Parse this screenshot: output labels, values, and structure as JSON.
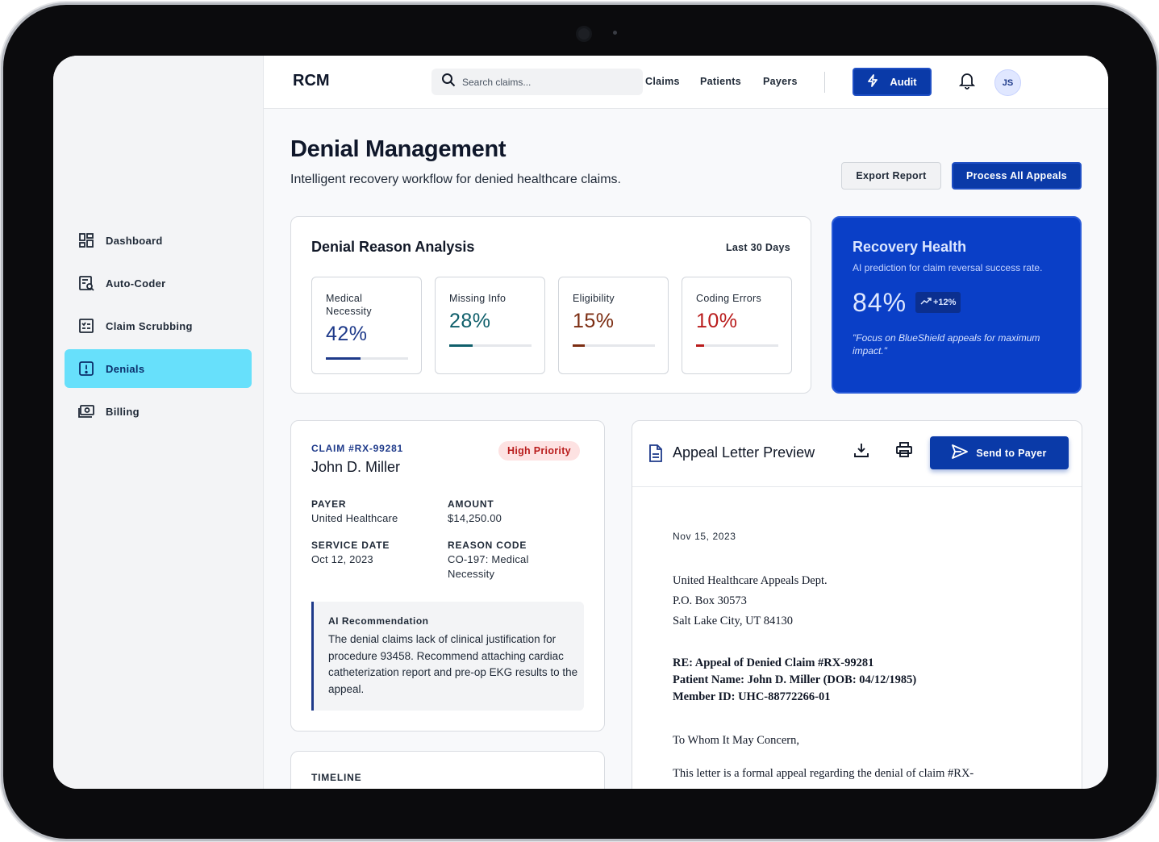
{
  "app": {
    "brand": "RCM"
  },
  "search": {
    "placeholder": "Search claims..."
  },
  "topnav": {
    "links": [
      "Claims",
      "Patients",
      "Payers"
    ],
    "audit_label": "Audit",
    "avatar_initials": "JS"
  },
  "sidebar": {
    "items": [
      {
        "label": "Dashboard",
        "icon": "dashboard-icon"
      },
      {
        "label": "Auto-Coder",
        "icon": "auto-coder-icon"
      },
      {
        "label": "Claim Scrubbing",
        "icon": "checklist-icon"
      },
      {
        "label": "Denials",
        "icon": "alert-square-icon",
        "active": true
      },
      {
        "label": "Billing",
        "icon": "billing-icon"
      }
    ]
  },
  "page": {
    "title": "Denial Management",
    "subtitle": "Intelligent recovery workflow for denied healthcare claims.",
    "export_label": "Export Report",
    "process_label": "Process All Appeals"
  },
  "analysis": {
    "title": "Denial Reason Analysis",
    "range": "Last 30 Days",
    "metrics": [
      {
        "label": "Medical Necessity",
        "value": "42%",
        "fraction": 0.42,
        "color": "#1e3a8a"
      },
      {
        "label": "Missing Info",
        "value": "28%",
        "fraction": 0.28,
        "color": "#0f5f6b"
      },
      {
        "label": "Eligibility",
        "value": "15%",
        "fraction": 0.15,
        "color": "#7c2d12"
      },
      {
        "label": "Coding Errors",
        "value": "10%",
        "fraction": 0.1,
        "color": "#b91c1c"
      }
    ]
  },
  "health": {
    "title": "Recovery Health",
    "description": "AI prediction for claim reversal success rate.",
    "value": "84%",
    "trend": "+12%",
    "quote": "\"Focus on BlueShield appeals for maximum impact.\""
  },
  "claim": {
    "id": "CLAIM #RX-99281",
    "name": "John D. Miller",
    "priority": "High Priority",
    "payer_label": "PAYER",
    "payer": "United Healthcare",
    "amount_label": "AMOUNT",
    "amount": "$14,250.00",
    "service_date_label": "SERVICE DATE",
    "service_date": "Oct 12, 2023",
    "reason_code_label": "REASON CODE",
    "reason_code": "CO-197: Medical Necessity",
    "ai_label": "AI Recommendation",
    "ai_text": "The denial claims lack of clinical justification for procedure 93458. Recommend attaching cardiac catheterization report and pre-op EKG results to the appeal."
  },
  "timeline": {
    "label": "TIMELINE"
  },
  "letter": {
    "title": "Appeal Letter Preview",
    "send_label": "Send to Payer",
    "date": "Nov 15, 2023",
    "address": [
      "United Healthcare Appeals Dept.",
      "P.O. Box 30573",
      "Salt Lake City, UT 84130"
    ],
    "re": [
      "RE: Appeal of Denied Claim #RX-99281",
      "Patient Name: John D. Miller (DOB: 04/12/1985)",
      "Member ID: UHC-88772266-01"
    ],
    "salutation": "To Whom It May Concern,",
    "body_start": "This letter is a formal appeal regarding the denial of claim #RX-"
  }
}
